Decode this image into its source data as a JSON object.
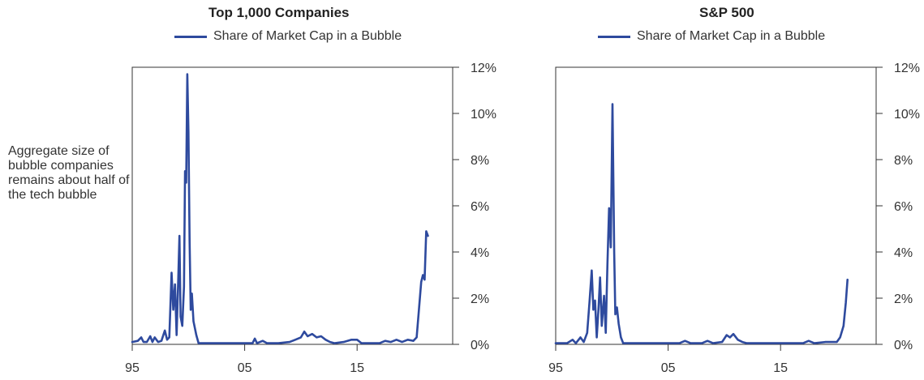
{
  "side_note": "Aggregate size of bubble companies remains about half of the tech bubble",
  "colors": {
    "series": "#2e4a9e",
    "axis": "#333333"
  },
  "chart_data": [
    {
      "type": "line",
      "title": "Top 1,000 Companies",
      "legend_position": "top-center",
      "grid": false,
      "x_tick_labels": [
        "95",
        "05",
        "15"
      ],
      "x_ticks": [
        1995,
        2005,
        2015
      ],
      "xlim": [
        1995,
        2023.5
      ],
      "y_tick_labels": [
        "0%",
        "2%",
        "4%",
        "6%",
        "8%",
        "10%",
        "12%"
      ],
      "y_ticks": [
        0,
        2,
        4,
        6,
        8,
        10,
        12
      ],
      "ylim": [
        0,
        12
      ],
      "series": [
        {
          "name": "Share of Market Cap in a Bubble",
          "points": [
            [
              1995.0,
              0.1
            ],
            [
              1995.5,
              0.15
            ],
            [
              1995.8,
              0.3
            ],
            [
              1996.0,
              0.1
            ],
            [
              1996.3,
              0.1
            ],
            [
              1996.6,
              0.35
            ],
            [
              1996.8,
              0.1
            ],
            [
              1997.0,
              0.3
            ],
            [
              1997.3,
              0.1
            ],
            [
              1997.6,
              0.15
            ],
            [
              1997.9,
              0.6
            ],
            [
              1998.1,
              0.2
            ],
            [
              1998.3,
              0.3
            ],
            [
              1998.5,
              3.1
            ],
            [
              1998.65,
              1.5
            ],
            [
              1998.8,
              2.6
            ],
            [
              1998.95,
              0.4
            ],
            [
              1999.1,
              2.9
            ],
            [
              1999.2,
              4.7
            ],
            [
              1999.3,
              1.2
            ],
            [
              1999.45,
              0.8
            ],
            [
              1999.6,
              2.5
            ],
            [
              1999.7,
              7.5
            ],
            [
              1999.8,
              7.0
            ],
            [
              1999.9,
              11.7
            ],
            [
              2000.0,
              9.2
            ],
            [
              2000.1,
              4.5
            ],
            [
              2000.2,
              1.5
            ],
            [
              2000.3,
              2.2
            ],
            [
              2000.45,
              1.0
            ],
            [
              2000.7,
              0.4
            ],
            [
              2000.9,
              0.05
            ],
            [
              2002.0,
              0.05
            ],
            [
              2005.0,
              0.05
            ],
            [
              2005.7,
              0.05
            ],
            [
              2005.9,
              0.25
            ],
            [
              2006.1,
              0.05
            ],
            [
              2006.6,
              0.15
            ],
            [
              2007.0,
              0.05
            ],
            [
              2008.0,
              0.05
            ],
            [
              2009.0,
              0.1
            ],
            [
              2009.5,
              0.2
            ],
            [
              2010.0,
              0.3
            ],
            [
              2010.3,
              0.55
            ],
            [
              2010.6,
              0.35
            ],
            [
              2011.0,
              0.45
            ],
            [
              2011.4,
              0.3
            ],
            [
              2011.8,
              0.35
            ],
            [
              2012.2,
              0.2
            ],
            [
              2012.6,
              0.1
            ],
            [
              2013.0,
              0.05
            ],
            [
              2013.8,
              0.1
            ],
            [
              2014.5,
              0.2
            ],
            [
              2015.0,
              0.2
            ],
            [
              2015.4,
              0.05
            ],
            [
              2016.0,
              0.05
            ],
            [
              2017.0,
              0.05
            ],
            [
              2017.5,
              0.15
            ],
            [
              2018.0,
              0.1
            ],
            [
              2018.5,
              0.2
            ],
            [
              2019.0,
              0.1
            ],
            [
              2019.5,
              0.2
            ],
            [
              2020.0,
              0.15
            ],
            [
              2020.3,
              0.3
            ],
            [
              2020.5,
              1.5
            ],
            [
              2020.7,
              2.7
            ],
            [
              2020.85,
              3.0
            ],
            [
              2021.0,
              2.8
            ],
            [
              2021.15,
              4.9
            ],
            [
              2021.3,
              4.7
            ]
          ]
        }
      ]
    },
    {
      "type": "line",
      "title": "S&P 500",
      "legend_position": "top-center",
      "grid": false,
      "x_tick_labels": [
        "95",
        "05",
        "15"
      ],
      "x_ticks": [
        1995,
        2005,
        2015
      ],
      "xlim": [
        1995,
        2023.5
      ],
      "y_tick_labels": [
        "0%",
        "2%",
        "4%",
        "6%",
        "8%",
        "10%",
        "12%"
      ],
      "y_ticks": [
        0,
        2,
        4,
        6,
        8,
        10,
        12
      ],
      "ylim": [
        0,
        12
      ],
      "series": [
        {
          "name": "Share of Market Cap in a Bubble",
          "points": [
            [
              1995.0,
              0.05
            ],
            [
              1996.0,
              0.05
            ],
            [
              1996.5,
              0.2
            ],
            [
              1996.8,
              0.05
            ],
            [
              1997.2,
              0.3
            ],
            [
              1997.5,
              0.1
            ],
            [
              1997.8,
              0.5
            ],
            [
              1998.0,
              1.8
            ],
            [
              1998.2,
              3.2
            ],
            [
              1998.35,
              1.5
            ],
            [
              1998.5,
              1.9
            ],
            [
              1998.65,
              0.3
            ],
            [
              1998.8,
              1.5
            ],
            [
              1998.95,
              2.9
            ],
            [
              1999.1,
              0.8
            ],
            [
              1999.3,
              2.1
            ],
            [
              1999.45,
              0.5
            ],
            [
              1999.6,
              3.5
            ],
            [
              1999.75,
              5.9
            ],
            [
              1999.9,
              4.2
            ],
            [
              2000.05,
              10.4
            ],
            [
              2000.2,
              4.0
            ],
            [
              2000.3,
              1.3
            ],
            [
              2000.45,
              1.6
            ],
            [
              2000.6,
              0.9
            ],
            [
              2000.8,
              0.3
            ],
            [
              2001.0,
              0.05
            ],
            [
              2003.0,
              0.05
            ],
            [
              2005.0,
              0.05
            ],
            [
              2006.0,
              0.05
            ],
            [
              2006.5,
              0.15
            ],
            [
              2007.0,
              0.05
            ],
            [
              2008.0,
              0.05
            ],
            [
              2008.5,
              0.15
            ],
            [
              2009.0,
              0.05
            ],
            [
              2009.8,
              0.1
            ],
            [
              2010.2,
              0.4
            ],
            [
              2010.5,
              0.3
            ],
            [
              2010.8,
              0.45
            ],
            [
              2011.2,
              0.2
            ],
            [
              2011.6,
              0.1
            ],
            [
              2012.0,
              0.05
            ],
            [
              2014.0,
              0.05
            ],
            [
              2016.0,
              0.05
            ],
            [
              2017.0,
              0.05
            ],
            [
              2017.5,
              0.15
            ],
            [
              2018.0,
              0.05
            ],
            [
              2019.0,
              0.1
            ],
            [
              2019.6,
              0.1
            ],
            [
              2020.0,
              0.1
            ],
            [
              2020.3,
              0.3
            ],
            [
              2020.6,
              0.8
            ],
            [
              2020.8,
              1.8
            ],
            [
              2020.95,
              2.8
            ]
          ]
        }
      ]
    }
  ]
}
